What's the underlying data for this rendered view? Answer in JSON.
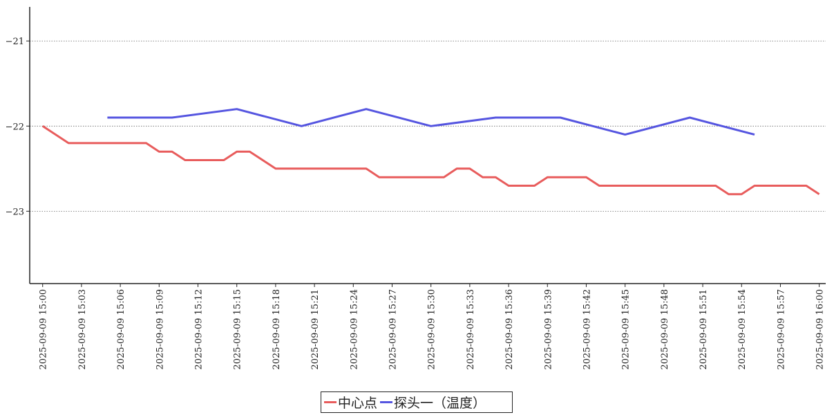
{
  "chart_data": {
    "type": "line",
    "x": [
      "2025-09-09 15:00",
      "2025-09-09 15:03",
      "2025-09-09 15:06",
      "2025-09-09 15:09",
      "2025-09-09 15:12",
      "2025-09-09 15:15",
      "2025-09-09 15:18",
      "2025-09-09 15:21",
      "2025-09-09 15:24",
      "2025-09-09 15:27",
      "2025-09-09 15:30",
      "2025-09-09 15:33",
      "2025-09-09 15:36",
      "2025-09-09 15:39",
      "2025-09-09 15:42",
      "2025-09-09 15:45",
      "2025-09-09 15:48",
      "2025-09-09 15:51",
      "2025-09-09 15:54",
      "2025-09-09 15:57",
      "2025-09-09 16:00"
    ],
    "xlim": [
      "2025-09-09 14:59:00",
      "2025-09-09 16:00:30"
    ],
    "ylim": [
      -23.85,
      -20.6
    ],
    "yticks": [
      -21,
      -22,
      -23
    ],
    "ytick_labels": [
      "−21",
      "−22",
      "−23"
    ],
    "grid": "horizontal dotted",
    "legend_position": "bottom-center",
    "series": [
      {
        "name": "中心点",
        "color": "#e85c5c",
        "points": [
          [
            "2025-09-09 15:00",
            -22.0
          ],
          [
            "2025-09-09 15:02",
            -22.2
          ],
          [
            "2025-09-09 15:08",
            -22.2
          ],
          [
            "2025-09-09 15:09",
            -22.3
          ],
          [
            "2025-09-09 15:10",
            -22.3
          ],
          [
            "2025-09-09 15:11",
            -22.4
          ],
          [
            "2025-09-09 15:14",
            -22.4
          ],
          [
            "2025-09-09 15:15",
            -22.3
          ],
          [
            "2025-09-09 15:16",
            -22.3
          ],
          [
            "2025-09-09 15:18",
            -22.5
          ],
          [
            "2025-09-09 15:25",
            -22.5
          ],
          [
            "2025-09-09 15:26",
            -22.6
          ],
          [
            "2025-09-09 15:31",
            -22.6
          ],
          [
            "2025-09-09 15:32",
            -22.5
          ],
          [
            "2025-09-09 15:33",
            -22.5
          ],
          [
            "2025-09-09 15:34",
            -22.6
          ],
          [
            "2025-09-09 15:35",
            -22.6
          ],
          [
            "2025-09-09 15:36",
            -22.7
          ],
          [
            "2025-09-09 15:38",
            -22.7
          ],
          [
            "2025-09-09 15:39",
            -22.6
          ],
          [
            "2025-09-09 15:42",
            -22.6
          ],
          [
            "2025-09-09 15:43",
            -22.7
          ],
          [
            "2025-09-09 15:52",
            -22.7
          ],
          [
            "2025-09-09 15:53",
            -22.8
          ],
          [
            "2025-09-09 15:54",
            -22.8
          ],
          [
            "2025-09-09 15:55",
            -22.7
          ],
          [
            "2025-09-09 15:59",
            -22.7
          ],
          [
            "2025-09-09 16:00",
            -22.8
          ]
        ]
      },
      {
        "name": "探头一（温度）",
        "color": "#5555e0",
        "points": [
          [
            "2025-09-09 15:05",
            -21.9
          ],
          [
            "2025-09-09 15:10",
            -21.9
          ],
          [
            "2025-09-09 15:15",
            -21.8
          ],
          [
            "2025-09-09 15:20",
            -22.0
          ],
          [
            "2025-09-09 15:25",
            -21.8
          ],
          [
            "2025-09-09 15:30",
            -22.0
          ],
          [
            "2025-09-09 15:35",
            -21.9
          ],
          [
            "2025-09-09 15:40",
            -21.9
          ],
          [
            "2025-09-09 15:45",
            -22.1
          ],
          [
            "2025-09-09 15:50",
            -21.9
          ],
          [
            "2025-09-09 15:55",
            -22.1
          ]
        ]
      }
    ]
  }
}
